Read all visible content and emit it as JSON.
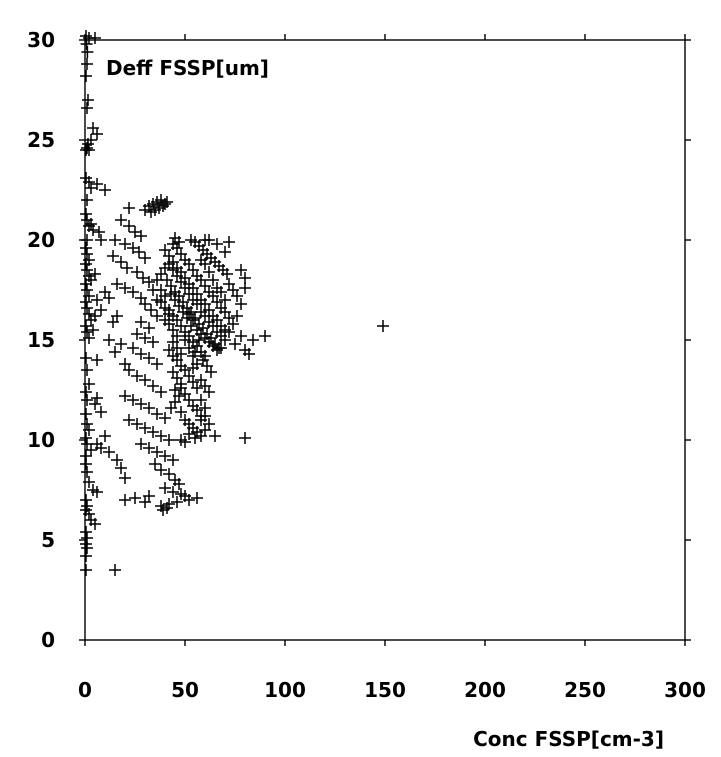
{
  "chart_data": {
    "type": "scatter",
    "title": "Deff FSSP[um]",
    "xlabel": "Conc FSSP[cm-3]",
    "ylabel": "Deff FSSP[um]",
    "xlim": [
      0,
      300
    ],
    "ylim": [
      0,
      30
    ],
    "xticks": [
      "0",
      "50",
      "100",
      "150",
      "200",
      "250",
      "300"
    ],
    "yticks": [
      "0",
      "5",
      "10",
      "15",
      "20",
      "25",
      "30"
    ],
    "grid": false,
    "marker": "+",
    "color": "#000000",
    "points": [
      [
        0.5,
        30.2
      ],
      [
        0.8,
        29.8
      ],
      [
        1.2,
        29.4
      ],
      [
        2,
        30.1
      ],
      [
        1,
        28.8
      ],
      [
        0.5,
        28.2
      ],
      [
        1.5,
        27.0
      ],
      [
        1.0,
        26.6
      ],
      [
        5,
        30.1
      ],
      [
        4,
        25.6
      ],
      [
        6,
        25.3
      ],
      [
        3,
        25.0
      ],
      [
        1,
        24.6
      ],
      [
        0.5,
        24.5
      ],
      [
        2,
        24.5
      ],
      [
        1.5,
        24.8
      ],
      [
        0.5,
        23.1
      ],
      [
        2,
        22.9
      ],
      [
        3,
        22.6
      ],
      [
        6,
        22.8
      ],
      [
        10,
        22.5
      ],
      [
        1,
        22.0
      ],
      [
        0.5,
        21.3
      ],
      [
        1,
        21.0
      ],
      [
        2,
        20.7
      ],
      [
        3,
        20.8
      ],
      [
        4,
        20.5
      ],
      [
        7,
        20.4
      ],
      [
        8,
        20.0
      ],
      [
        1,
        20.0
      ],
      [
        0.5,
        19.6
      ],
      [
        1,
        19.3
      ],
      [
        2,
        19.0
      ],
      [
        0.5,
        18.8
      ],
      [
        1,
        18.5
      ],
      [
        2,
        18.2
      ],
      [
        3,
        18.0
      ],
      [
        0.5,
        17.8
      ],
      [
        1,
        17.5
      ],
      [
        2,
        17.2
      ],
      [
        0.5,
        16.9
      ],
      [
        1,
        16.6
      ],
      [
        2,
        16.3
      ],
      [
        3,
        16.0
      ],
      [
        0.5,
        15.7
      ],
      [
        1,
        15.4
      ],
      [
        2,
        15.1
      ],
      [
        4,
        15.5
      ],
      [
        5,
        16.2
      ],
      [
        6,
        17.0
      ],
      [
        5,
        18.3
      ],
      [
        10,
        17.4
      ],
      [
        12,
        17.1
      ],
      [
        8,
        16.5
      ],
      [
        14,
        15.9
      ],
      [
        12,
        15.0
      ],
      [
        16,
        16.2
      ],
      [
        18,
        14.8
      ],
      [
        15,
        14.4
      ],
      [
        20,
        13.8
      ],
      [
        6,
        14.0
      ],
      [
        0.5,
        14.1
      ],
      [
        1,
        13.5
      ],
      [
        2,
        12.8
      ],
      [
        0.5,
        12.4
      ],
      [
        1,
        12.0
      ],
      [
        5,
        11.8
      ],
      [
        8,
        11.4
      ],
      [
        6,
        12.1
      ],
      [
        0.5,
        11.3
      ],
      [
        1,
        10.8
      ],
      [
        2,
        10.5
      ],
      [
        0.5,
        10.1
      ],
      [
        1,
        9.8
      ],
      [
        3,
        9.5
      ],
      [
        0.5,
        9.2
      ],
      [
        6,
        9.8
      ],
      [
        10,
        10.2
      ],
      [
        8,
        9.6
      ],
      [
        12,
        9.4
      ],
      [
        16,
        9.0
      ],
      [
        18,
        8.6
      ],
      [
        20,
        8.1
      ],
      [
        0.5,
        8.8
      ],
      [
        1,
        8.4
      ],
      [
        2,
        7.9
      ],
      [
        4,
        7.5
      ],
      [
        6,
        7.4
      ],
      [
        0.5,
        7.0
      ],
      [
        1,
        6.7
      ],
      [
        0.5,
        6.5
      ],
      [
        2,
        6.3
      ],
      [
        3,
        6.0
      ],
      [
        5,
        5.8
      ],
      [
        0.5,
        5.4
      ],
      [
        1,
        5.1
      ],
      [
        0.5,
        4.8
      ],
      [
        1,
        4.6
      ],
      [
        0.5,
        4.2
      ],
      [
        0.5,
        3.5
      ],
      [
        15,
        3.5
      ],
      [
        22,
        21.6
      ],
      [
        30,
        21.5
      ],
      [
        32,
        21.7
      ],
      [
        34,
        21.8
      ],
      [
        36,
        21.9
      ],
      [
        38,
        22.0
      ],
      [
        40,
        21.8
      ],
      [
        41,
        21.9
      ],
      [
        37,
        21.6
      ],
      [
        35,
        21.5
      ],
      [
        39,
        21.7
      ],
      [
        33,
        21.4
      ],
      [
        18,
        21.0
      ],
      [
        22,
        20.7
      ],
      [
        25,
        20.4
      ],
      [
        28,
        20.2
      ],
      [
        15,
        20.0
      ],
      [
        20,
        19.8
      ],
      [
        24,
        19.6
      ],
      [
        27,
        19.4
      ],
      [
        30,
        19.1
      ],
      [
        14,
        19.2
      ],
      [
        18,
        18.9
      ],
      [
        21,
        18.6
      ],
      [
        26,
        18.4
      ],
      [
        29,
        18.1
      ],
      [
        32,
        17.9
      ],
      [
        20,
        17.6
      ],
      [
        24,
        17.4
      ],
      [
        28,
        17.1
      ],
      [
        16,
        17.8
      ],
      [
        30,
        16.8
      ],
      [
        33,
        16.5
      ],
      [
        36,
        16.2
      ],
      [
        28,
        15.9
      ],
      [
        32,
        15.6
      ],
      [
        26,
        15.3
      ],
      [
        30,
        15.1
      ],
      [
        34,
        14.9
      ],
      [
        24,
        14.6
      ],
      [
        28,
        14.3
      ],
      [
        32,
        14.1
      ],
      [
        36,
        13.8
      ],
      [
        22,
        13.5
      ],
      [
        26,
        13.2
      ],
      [
        30,
        13.0
      ],
      [
        34,
        12.7
      ],
      [
        38,
        12.4
      ],
      [
        20,
        12.2
      ],
      [
        24,
        12.0
      ],
      [
        28,
        11.8
      ],
      [
        32,
        11.6
      ],
      [
        36,
        11.3
      ],
      [
        40,
        11.1
      ],
      [
        22,
        11.0
      ],
      [
        26,
        10.8
      ],
      [
        30,
        10.6
      ],
      [
        34,
        10.4
      ],
      [
        38,
        10.2
      ],
      [
        42,
        10.0
      ],
      [
        28,
        9.8
      ],
      [
        32,
        9.6
      ],
      [
        36,
        9.4
      ],
      [
        40,
        9.2
      ],
      [
        44,
        9.0
      ],
      [
        35,
        8.8
      ],
      [
        38,
        8.5
      ],
      [
        42,
        8.3
      ],
      [
        45,
        8.0
      ],
      [
        47,
        7.8
      ],
      [
        40,
        7.6
      ],
      [
        44,
        7.4
      ],
      [
        48,
        7.3
      ],
      [
        50,
        7.2
      ],
      [
        52,
        7.0
      ],
      [
        46,
        6.9
      ],
      [
        42,
        6.8
      ],
      [
        38,
        6.7
      ],
      [
        39,
        6.5
      ],
      [
        41,
        6.6
      ],
      [
        20,
        7.0
      ],
      [
        25,
        7.1
      ],
      [
        30,
        6.9
      ],
      [
        32,
        7.2
      ],
      [
        56,
        7.1
      ],
      [
        40,
        19.5
      ],
      [
        42,
        19.2
      ],
      [
        44,
        18.9
      ],
      [
        46,
        18.6
      ],
      [
        48,
        18.4
      ],
      [
        50,
        18.1
      ],
      [
        52,
        17.8
      ],
      [
        54,
        17.6
      ],
      [
        56,
        17.3
      ],
      [
        58,
        17.0
      ],
      [
        60,
        16.8
      ],
      [
        62,
        16.5
      ],
      [
        64,
        16.2
      ],
      [
        66,
        16.0
      ],
      [
        68,
        15.7
      ],
      [
        70,
        15.5
      ],
      [
        41,
        18.0
      ],
      [
        43,
        17.7
      ],
      [
        45,
        17.4
      ],
      [
        47,
        17.2
      ],
      [
        49,
        16.9
      ],
      [
        51,
        16.6
      ],
      [
        53,
        16.4
      ],
      [
        55,
        16.1
      ],
      [
        57,
        15.8
      ],
      [
        59,
        15.6
      ],
      [
        61,
        15.3
      ],
      [
        63,
        15.1
      ],
      [
        65,
        14.8
      ],
      [
        67,
        14.6
      ],
      [
        42,
        16.5
      ],
      [
        44,
        16.2
      ],
      [
        46,
        16.0
      ],
      [
        48,
        15.7
      ],
      [
        50,
        15.4
      ],
      [
        52,
        15.2
      ],
      [
        54,
        14.9
      ],
      [
        56,
        14.7
      ],
      [
        58,
        14.4
      ],
      [
        60,
        14.2
      ],
      [
        44,
        19.8
      ],
      [
        46,
        19.6
      ],
      [
        48,
        19.3
      ],
      [
        50,
        19.0
      ],
      [
        52,
        18.8
      ],
      [
        54,
        18.5
      ],
      [
        56,
        18.2
      ],
      [
        58,
        18.0
      ],
      [
        60,
        17.7
      ],
      [
        62,
        17.4
      ],
      [
        64,
        17.2
      ],
      [
        66,
        16.9
      ],
      [
        68,
        16.6
      ],
      [
        55,
        19.9
      ],
      [
        57,
        19.7
      ],
      [
        59,
        19.5
      ],
      [
        61,
        19.3
      ],
      [
        63,
        19.1
      ],
      [
        65,
        18.9
      ],
      [
        67,
        18.7
      ],
      [
        69,
        18.5
      ],
      [
        71,
        18.3
      ],
      [
        72,
        19.9
      ],
      [
        70,
        19.4
      ],
      [
        45,
        20.1
      ],
      [
        47,
        19.9
      ],
      [
        53,
        20.0
      ],
      [
        62,
        20.0
      ],
      [
        66,
        19.8
      ],
      [
        60,
        20.0
      ],
      [
        72,
        17.8
      ],
      [
        74,
        17.5
      ],
      [
        76,
        17.2
      ],
      [
        78,
        16.8
      ],
      [
        80,
        17.6
      ],
      [
        76,
        16.2
      ],
      [
        74,
        15.8
      ],
      [
        72,
        15.4
      ],
      [
        70,
        15.0
      ],
      [
        68,
        14.6
      ],
      [
        75,
        14.8
      ],
      [
        78,
        15.2
      ],
      [
        80,
        14.5
      ],
      [
        82,
        14.3
      ],
      [
        90,
        15.2
      ],
      [
        84,
        15.0
      ],
      [
        80,
        18.1
      ],
      [
        78,
        18.5
      ],
      [
        50,
        15.0
      ],
      [
        52,
        14.6
      ],
      [
        54,
        14.2
      ],
      [
        56,
        13.8
      ],
      [
        50,
        13.5
      ],
      [
        52,
        13.2
      ],
      [
        54,
        12.9
      ],
      [
        48,
        12.6
      ],
      [
        50,
        12.3
      ],
      [
        52,
        12.0
      ],
      [
        54,
        11.7
      ],
      [
        56,
        11.5
      ],
      [
        58,
        11.2
      ],
      [
        48,
        11.4
      ],
      [
        50,
        11.0
      ],
      [
        52,
        10.8
      ],
      [
        54,
        10.6
      ],
      [
        56,
        10.4
      ],
      [
        58,
        10.2
      ],
      [
        60,
        10.5
      ],
      [
        62,
        10.8
      ],
      [
        55,
        10.1
      ],
      [
        52,
        10.3
      ],
      [
        50,
        9.9
      ],
      [
        48,
        10.0
      ],
      [
        46,
        14.0
      ],
      [
        48,
        13.7
      ],
      [
        44,
        13.4
      ],
      [
        46,
        13.1
      ],
      [
        48,
        12.8
      ],
      [
        45,
        12.5
      ],
      [
        47,
        12.2
      ],
      [
        45,
        11.9
      ],
      [
        43,
        11.6
      ],
      [
        58,
        13.0
      ],
      [
        60,
        12.7
      ],
      [
        62,
        12.4
      ],
      [
        58,
        12.0
      ],
      [
        60,
        11.6
      ],
      [
        58,
        11.0
      ],
      [
        60,
        11.2
      ],
      [
        56,
        12.6
      ],
      [
        54,
        13.6
      ],
      [
        38,
        17.5
      ],
      [
        40,
        17.2
      ],
      [
        38,
        16.9
      ],
      [
        40,
        16.6
      ],
      [
        42,
        16.3
      ],
      [
        40,
        16.0
      ],
      [
        42,
        15.8
      ],
      [
        44,
        15.5
      ],
      [
        46,
        15.2
      ],
      [
        44,
        14.9
      ],
      [
        46,
        14.6
      ],
      [
        48,
        14.3
      ],
      [
        42,
        14.5
      ],
      [
        44,
        14.2
      ],
      [
        56,
        15.5
      ],
      [
        58,
        15.3
      ],
      [
        60,
        15.1
      ],
      [
        62,
        14.9
      ],
      [
        64,
        14.7
      ],
      [
        66,
        14.5
      ],
      [
        58,
        16.4
      ],
      [
        60,
        16.2
      ],
      [
        62,
        15.9
      ],
      [
        64,
        15.7
      ],
      [
        66,
        15.4
      ],
      [
        68,
        15.2
      ],
      [
        70,
        16.4
      ],
      [
        72,
        16.1
      ],
      [
        70,
        17.0
      ],
      [
        68,
        17.4
      ],
      [
        66,
        17.6
      ],
      [
        64,
        18.0
      ],
      [
        62,
        18.4
      ],
      [
        60,
        18.8
      ],
      [
        58,
        19.0
      ],
      [
        52,
        16.3
      ],
      [
        54,
        16.0
      ],
      [
        56,
        16.8
      ],
      [
        54,
        17.0
      ],
      [
        52,
        17.3
      ],
      [
        50,
        17.6
      ],
      [
        48,
        17.9
      ],
      [
        46,
        18.2
      ],
      [
        44,
        18.5
      ],
      [
        42,
        18.8
      ],
      [
        40,
        18.6
      ],
      [
        38,
        18.3
      ],
      [
        36,
        18.0
      ],
      [
        36,
        17.0
      ],
      [
        34,
        17.5
      ],
      [
        65,
        10.2
      ],
      [
        80,
        10.1
      ],
      [
        57,
        15.0
      ],
      [
        59,
        14.0
      ],
      [
        61,
        13.7
      ],
      [
        63,
        13.4
      ],
      [
        55,
        14.4
      ],
      [
        53,
        15.7
      ],
      [
        51,
        16.1
      ],
      [
        49,
        16.4
      ],
      [
        47,
        16.7
      ],
      [
        45,
        17.0
      ],
      [
        43,
        17.3
      ],
      [
        149,
        15.7
      ]
    ]
  }
}
